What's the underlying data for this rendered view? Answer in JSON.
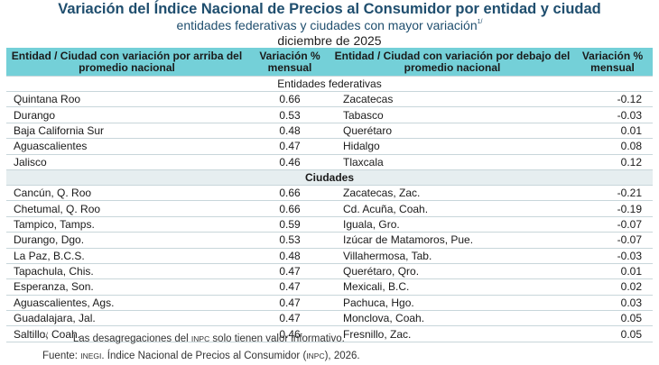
{
  "header": {
    "title": "Variación del Índice Nacional de Precios al Consumidor por entidad y ciudad",
    "subtitle": "entidades federativas y ciudades con mayor variación",
    "subtitle_note_mark": "1/",
    "date": "diciembre de 2025"
  },
  "table": {
    "columns": [
      "Entidad / Ciudad con variación por arriba del promedio nacional",
      "Variación % mensual",
      "Entidad / Ciudad con variación por debajo del promedio nacional",
      "Variación % mensual"
    ],
    "sections": [
      {
        "label": "Entidades federativas",
        "rows": [
          {
            "above": "Quintana Roo",
            "above_val": "0.66",
            "below": "Zacatecas",
            "below_val": "-0.12"
          },
          {
            "above": "Durango",
            "above_val": "0.53",
            "below": "Tabasco",
            "below_val": "-0.03"
          },
          {
            "above": "Baja California Sur",
            "above_val": "0.48",
            "below": "Querétaro",
            "below_val": "0.01"
          },
          {
            "above": "Aguascalientes",
            "above_val": "0.47",
            "below": "Hidalgo",
            "below_val": "0.08"
          },
          {
            "above": "Jalisco",
            "above_val": "0.46",
            "below": "Tlaxcala",
            "below_val": "0.12"
          }
        ]
      },
      {
        "label": "Ciudades",
        "rows": [
          {
            "above": "Cancún, Q. Roo",
            "above_val": "0.66",
            "below": "Zacatecas, Zac.",
            "below_val": "-0.21"
          },
          {
            "above": "Chetumal, Q. Roo",
            "above_val": "0.66",
            "below": "Cd. Acuña, Coah.",
            "below_val": "-0.19"
          },
          {
            "above": "Tampico, Tamps.",
            "above_val": "0.59",
            "below": "Iguala, Gro.",
            "below_val": "-0.07"
          },
          {
            "above": "Durango, Dgo.",
            "above_val": "0.53",
            "below": "Izúcar de Matamoros, Pue.",
            "below_val": "-0.07"
          },
          {
            "above": "La Paz, B.C.S.",
            "above_val": "0.48",
            "below": "Villahermosa, Tab.",
            "below_val": "-0.03"
          },
          {
            "above": "Tapachula, Chis.",
            "above_val": "0.47",
            "below": "Querétaro, Qro.",
            "below_val": "0.01"
          },
          {
            "above": "Esperanza, Son.",
            "above_val": "0.47",
            "below": "Mexicali, B.C.",
            "below_val": "0.02"
          },
          {
            "above": "Aguascalientes, Ags.",
            "above_val": "0.47",
            "below": "Pachuca, Hgo.",
            "below_val": "0.03"
          },
          {
            "above": "Guadalajara, Jal.",
            "above_val": "0.47",
            "below": "Monclova, Coah.",
            "below_val": "0.05"
          },
          {
            "above": "Saltillo, Coah.",
            "above_val": "0.46",
            "below": "Fresnillo, Zac.",
            "below_val": "0.05"
          }
        ]
      }
    ]
  },
  "footer": {
    "note_mark": "1/",
    "note_before": "Las desagregaciones del ",
    "note_abbr": "INPC",
    "note_after": " solo tienen valor informativo.",
    "source_label": "Fuente: ",
    "source_org": "INEGI",
    "source_before": ". Índice Nacional de Precios al Consumidor (",
    "source_abbr": "INPC",
    "source_after": "), 2026."
  }
}
